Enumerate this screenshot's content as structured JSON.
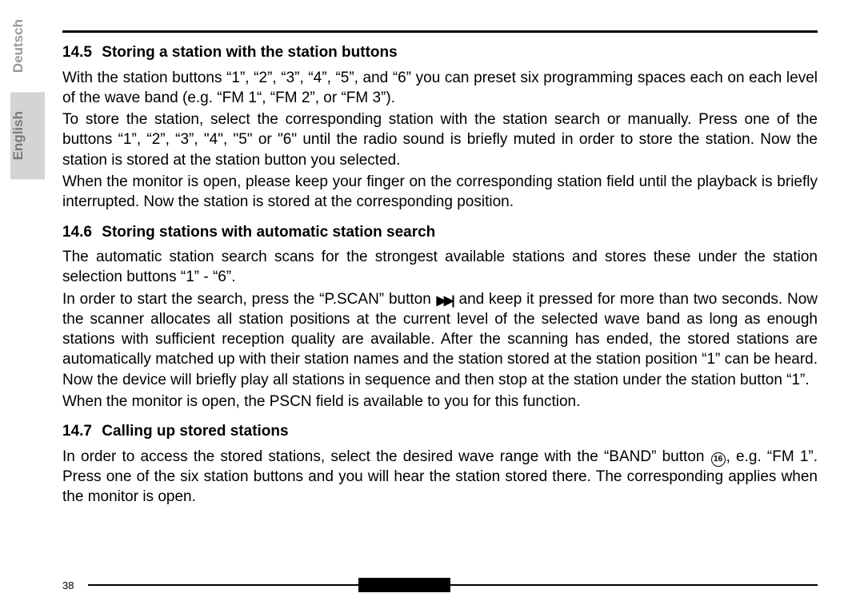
{
  "langs": {
    "deutsch": "Deutsch",
    "english": "English"
  },
  "sections": {
    "s1": {
      "num": "14.5",
      "title": "Storing a station with the station buttons",
      "p1": "With the station buttons “1”, “2”, “3”, “4”, “5”, and “6” you can preset six programming spaces each on each level of the wave band (e.g. “FM 1“, “FM 2”, or “FM 3”).",
      "p2": "To store the station, select the corresponding station with the station search or manually. Press one of the buttons “1”, “2”, “3”, \"4\", \"5\" or \"6\" until the radio sound is briefly muted in order to store the station. Now the station is stored at the station button you selected.",
      "p3": "When the monitor is open, please keep your finger on the corresponding station field until the playback is briefly interrupted. Now the station is stored at the corresponding position."
    },
    "s2": {
      "num": "14.6",
      "title": "Storing stations with automatic station search",
      "p1": "The automatic station search scans for the strongest available stations and stores these under the station selection buttons “1” - “6”.",
      "p2a": "In order to start the search, press the “P.SCAN” button",
      "p2b": "and keep it pressed for more than two seconds. Now the scanner allocates all station positions at the current level of the selected wave band as long as enough stations with sufficient reception quality are available. After the scanning has ended, the stored stations are automatically matched up with their station names and the station stored at the station position “1” can be heard. Now the device will briefly play all stations in sequence and then stop at the station under the station button “1”.",
      "p3": "When the monitor is open, the PSCN field is available to you for this function."
    },
    "s3": {
      "num": "14.7",
      "title": "Calling up stored stations",
      "p1a": "In order to access the stored stations, select the desired wave range with the “BAND” button",
      "circled": "16",
      "p1b": ", e.g. “FM 1”. Press one of the six station buttons and you will hear the station stored there. The corresponding applies when the monitor is open."
    }
  },
  "pscan_glyph": "▶▶|",
  "page_number": "38"
}
